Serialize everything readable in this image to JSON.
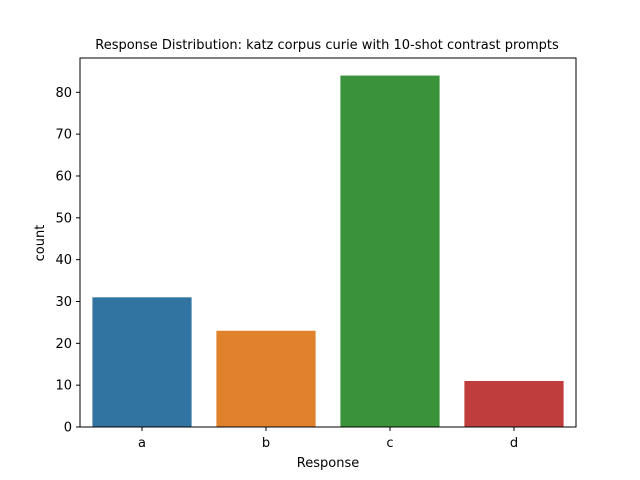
{
  "chart_data": {
    "type": "bar",
    "title": "Response Distribution: katz corpus curie with 10-shot contrast prompts",
    "xlabel": "Response",
    "ylabel": "count",
    "categories": [
      "a",
      "b",
      "c",
      "d"
    ],
    "values": [
      31,
      23,
      84,
      11
    ],
    "colors": [
      "#3274a1",
      "#e1812c",
      "#3a923a",
      "#c03d3e"
    ],
    "ylim": [
      0,
      88.2
    ],
    "yticks": [
      0,
      10,
      20,
      30,
      40,
      50,
      60,
      70,
      80
    ],
    "grid": false,
    "legend": "none"
  }
}
